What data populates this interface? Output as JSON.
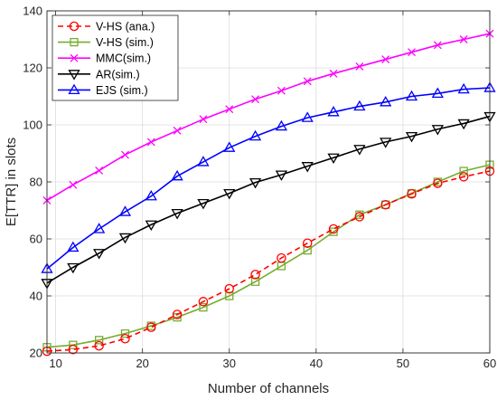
{
  "chart_data": {
    "type": "line",
    "xlabel": "Number of channels",
    "ylabel": "E[TTR] in slots",
    "xlim": [
      9,
      60
    ],
    "ylim": [
      20,
      140
    ],
    "xticks": [
      10,
      20,
      30,
      40,
      50,
      60
    ],
    "yticks": [
      20,
      40,
      60,
      80,
      100,
      120,
      140
    ],
    "grid": true,
    "legend_position": "top-left",
    "x": [
      9,
      12,
      15,
      18,
      21,
      24,
      27,
      30,
      33,
      36,
      39,
      42,
      45,
      48,
      51,
      54,
      57,
      60
    ],
    "series": [
      {
        "name": "V-HS (ana.)",
        "color": "#ff0000",
        "line": "dashed",
        "marker": "circle",
        "values": [
          20.6,
          21.2,
          22.5,
          25.0,
          29.0,
          33.5,
          38.0,
          42.5,
          47.5,
          53.3,
          58.5,
          63.5,
          67.8,
          72.0,
          75.8,
          79.5,
          81.8,
          83.8
        ]
      },
      {
        "name": "V-HS (sim.)",
        "color": "#77ac30",
        "line": "solid",
        "marker": "square",
        "values": [
          22.0,
          22.8,
          24.5,
          26.8,
          29.5,
          32.5,
          36.0,
          40.0,
          45.0,
          50.5,
          56.0,
          62.5,
          68.5,
          72.0,
          76.0,
          80.0,
          83.8,
          86.0
        ]
      },
      {
        "name": "MMC(sim.)",
        "color": "#ff00ff",
        "line": "solid",
        "marker": "x",
        "values": [
          73.5,
          79.0,
          84.0,
          89.5,
          94.0,
          98.0,
          102.0,
          105.5,
          109.0,
          112.0,
          115.3,
          118.0,
          120.5,
          123.0,
          125.5,
          128.0,
          130.0,
          132.0
        ]
      },
      {
        "name": "AR(sim.)",
        "color": "#000000",
        "line": "solid",
        "marker": "triangle-down",
        "values": [
          44.5,
          50.0,
          55.0,
          60.5,
          65.0,
          69.0,
          72.5,
          76.0,
          79.8,
          82.5,
          85.5,
          88.5,
          91.5,
          94.0,
          96.0,
          98.5,
          100.5,
          103.0
        ]
      },
      {
        "name": "EJS (sim.)",
        "color": "#0000ff",
        "line": "solid",
        "marker": "triangle-up",
        "values": [
          49.5,
          57.0,
          63.5,
          69.5,
          75.0,
          82.0,
          87.0,
          92.0,
          96.0,
          99.5,
          102.5,
          104.5,
          106.5,
          108.0,
          110.0,
          111.0,
          112.5,
          113.0
        ]
      }
    ]
  }
}
